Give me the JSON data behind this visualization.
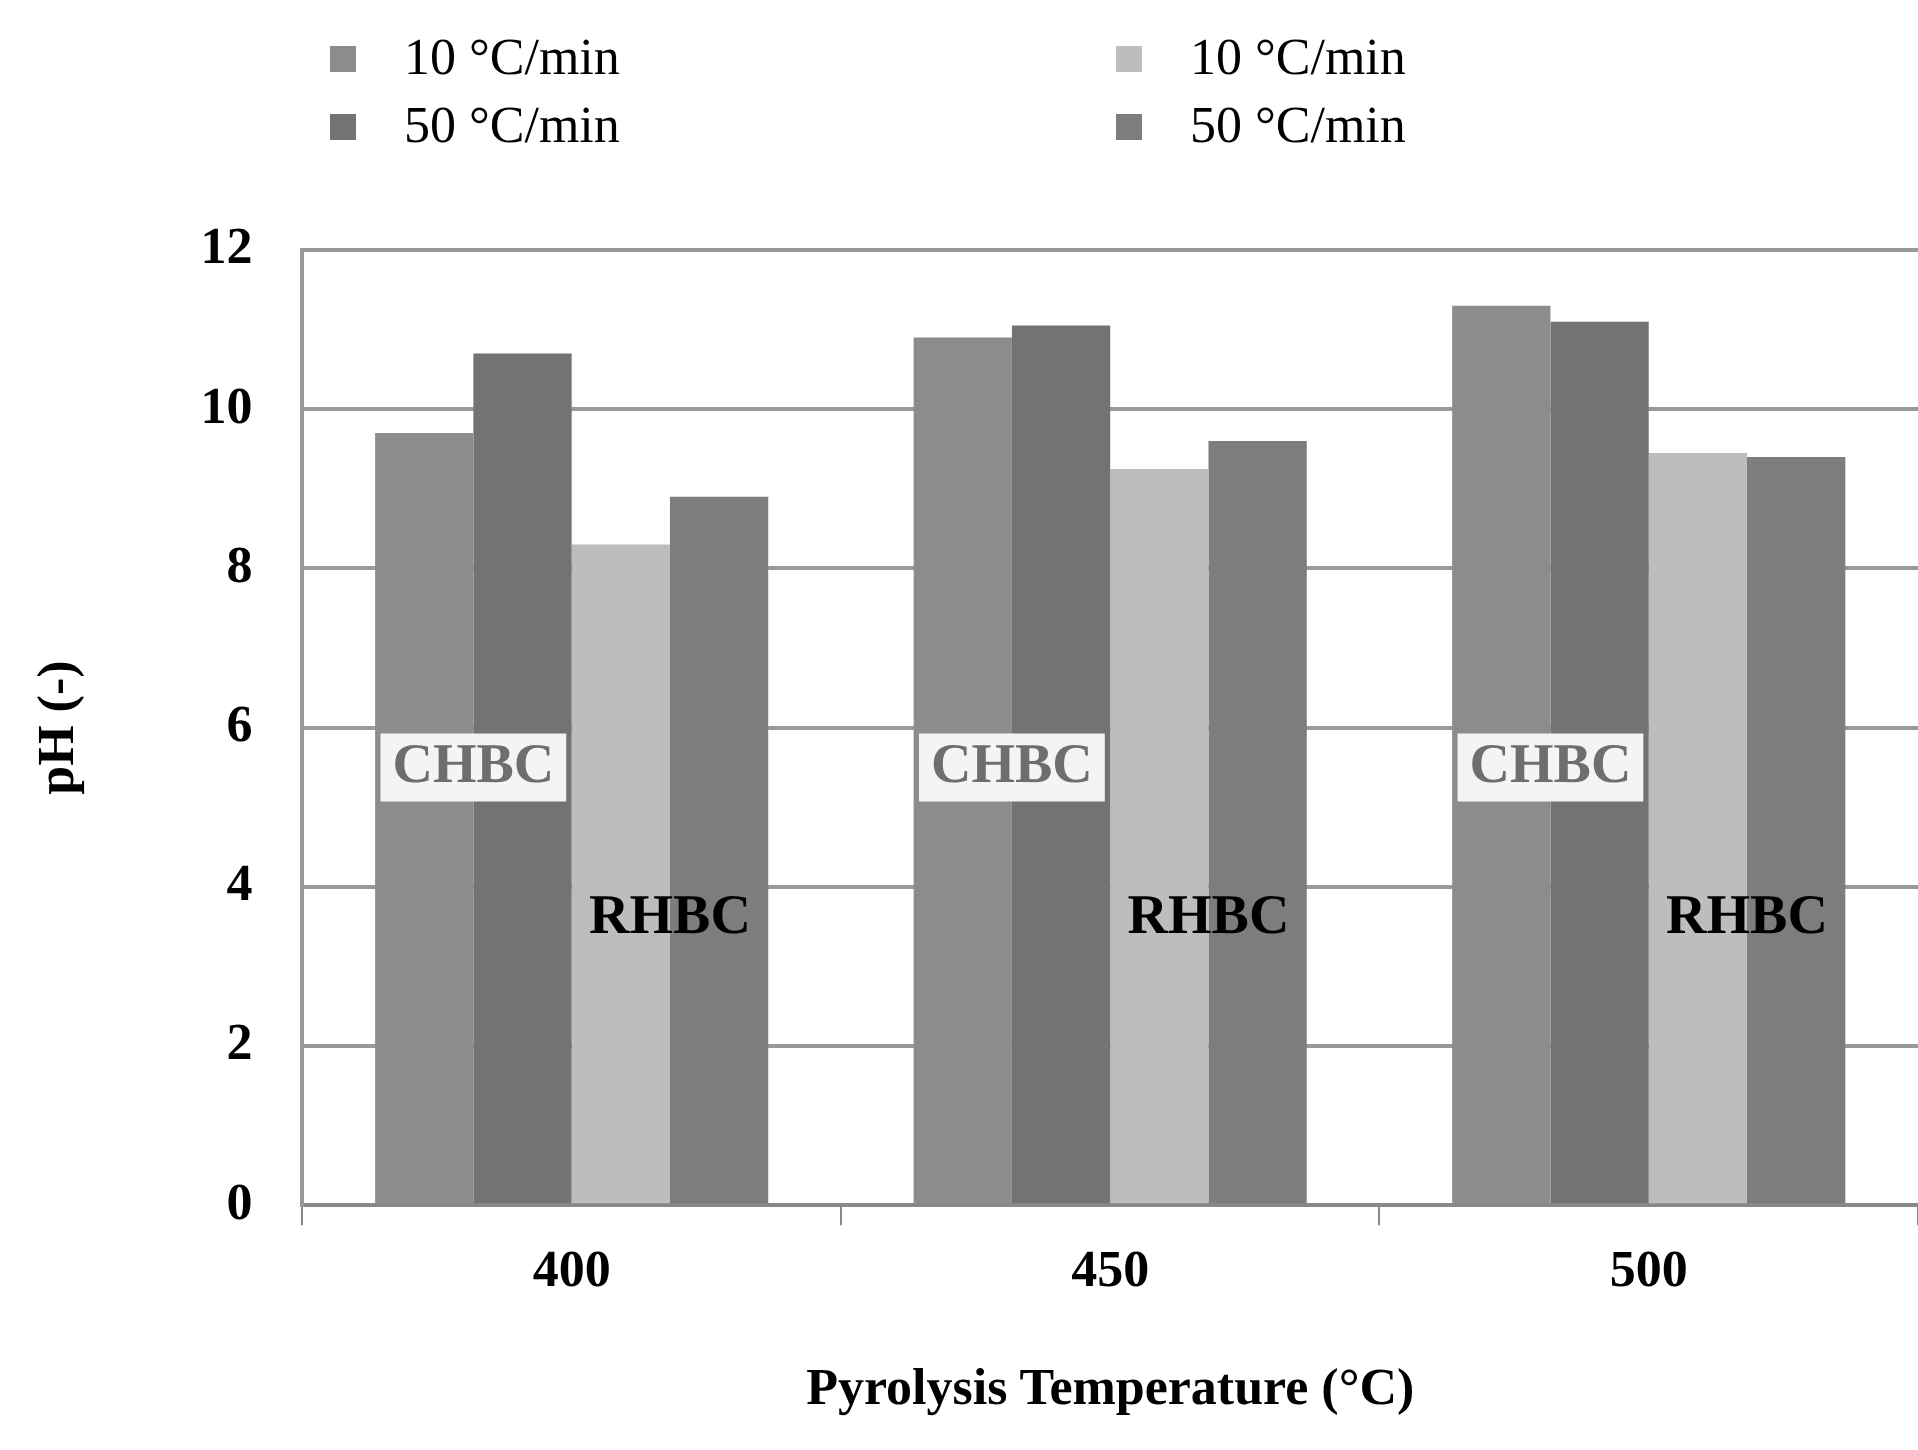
{
  "chart_data": {
    "type": "bar",
    "xlabel": "Pyrolysis Temperature (°C)",
    "ylabel": "pH (-)",
    "categories": [
      "400",
      "450",
      "500"
    ],
    "series": [
      {
        "name": "10 °C/min",
        "color": "#8c8c8c",
        "values": [
          9.7,
          10.9,
          11.3
        ]
      },
      {
        "name": "50 °C/min",
        "color": "#737373",
        "values": [
          10.7,
          11.05,
          11.1
        ]
      },
      {
        "name": "10 °C/min",
        "color": "#bdbdbd",
        "values": [
          8.3,
          9.25,
          9.45
        ]
      },
      {
        "name": "50 °C/min",
        "color": "#7d7d7d",
        "values": [
          8.9,
          9.6,
          9.4
        ]
      }
    ],
    "ylim": [
      0,
      12
    ],
    "yticks": [
      0,
      2,
      4,
      6,
      8,
      10,
      12
    ],
    "grid": "y",
    "legend": "top left",
    "annotations": [
      {
        "text": "CHBC",
        "x": "400",
        "y": 5.5
      },
      {
        "text": "RHBC",
        "x": "400",
        "y": 3.6
      },
      {
        "text": "CHBC",
        "x": "450",
        "y": 5.5
      },
      {
        "text": "RHBC",
        "x": "450",
        "y": 3.6
      },
      {
        "text": "CHBC",
        "x": "500",
        "y": 5.5
      },
      {
        "text": "RHBC",
        "x": "500",
        "y": 3.6
      }
    ]
  }
}
